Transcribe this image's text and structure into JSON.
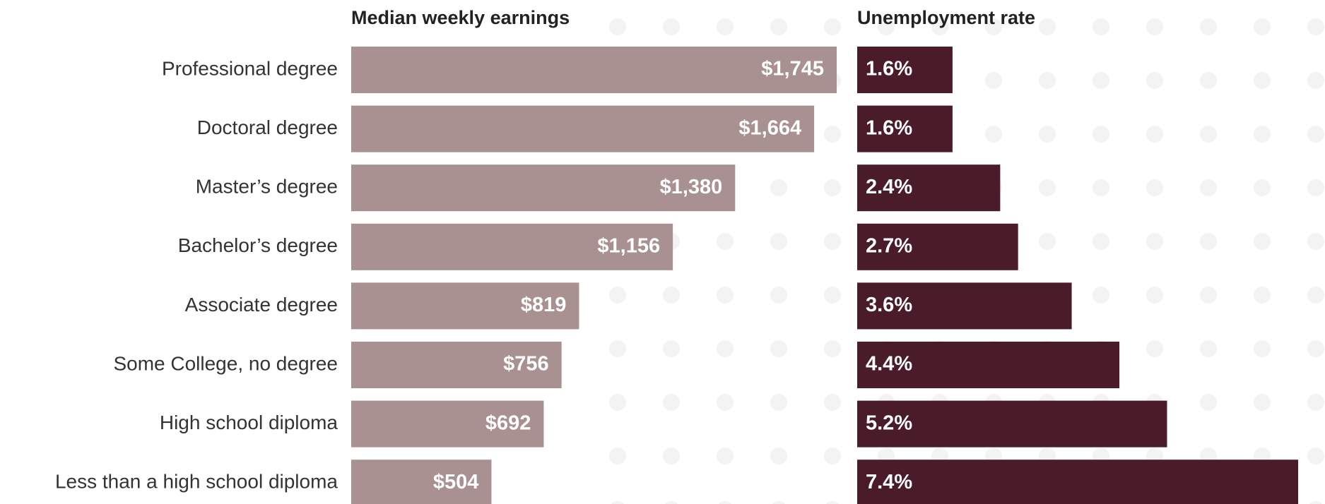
{
  "chart_data": [
    {
      "type": "bar",
      "orientation": "horizontal",
      "title": "Median weekly earnings",
      "categories": [
        "Professional degree",
        "Doctoral degree",
        "Master’s degree",
        "Bachelor’s degree",
        "Associate degree",
        "Some College, no degree",
        "High school diploma",
        "Less than a high school diploma"
      ],
      "values": [
        1745,
        1664,
        1380,
        1156,
        819,
        756,
        692,
        504
      ],
      "value_labels": [
        "$1,745",
        "$1,664",
        "$1,380",
        "$1,156",
        "$819",
        "$756",
        "$692",
        "$504"
      ],
      "color": "#a89190"
    },
    {
      "type": "bar",
      "orientation": "horizontal",
      "title": "Unemployment rate",
      "values": [
        1.6,
        1.6,
        2.4,
        2.7,
        3.6,
        4.4,
        5.2,
        7.4
      ],
      "value_labels": [
        "1.6%",
        "1.6%",
        "2.4%",
        "2.7%",
        "3.6%",
        "4.4%",
        "5.2%",
        "7.4%"
      ],
      "color": "#4a1c2a"
    }
  ]
}
